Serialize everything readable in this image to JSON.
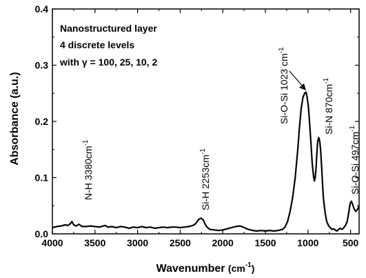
{
  "chart_data": {
    "type": "line",
    "xlabel": "Wavenumber",
    "xlabel_unit_base": "(cm",
    "xlabel_unit_sup": "-1",
    "xlabel_unit_close": ")",
    "ylabel": "Absorbance (a.u.)",
    "xlim": [
      4000,
      400
    ],
    "ylim": [
      0,
      0.4
    ],
    "x_reversed": true,
    "x_ticks": [
      {
        "value": 4000,
        "label": "4000"
      },
      {
        "value": 3500,
        "label": "3500"
      },
      {
        "value": 3000,
        "label": "3000"
      },
      {
        "value": 2500,
        "label": "2500"
      },
      {
        "value": 2000,
        "label": "2000"
      },
      {
        "value": 1500,
        "label": "1500"
      },
      {
        "value": 1000,
        "label": "1000"
      },
      {
        "value": 500,
        "label": "500"
      }
    ],
    "y_ticks": [
      {
        "value": 0.0,
        "label": "0.0"
      },
      {
        "value": 0.1,
        "label": "0.1"
      },
      {
        "value": 0.2,
        "label": "0.2"
      },
      {
        "value": 0.3,
        "label": "0.3"
      },
      {
        "value": 0.4,
        "label": "0.4"
      }
    ],
    "grid": false,
    "annotation_lines": [
      "Nanostructured layer",
      "4 discrete levels",
      "with γ = 100, 25, 10, 2"
    ],
    "peak_labels": [
      {
        "base": "N-H 3380cm",
        "sup": "-1",
        "x": 3380,
        "y": 0.012
      },
      {
        "base": "Si-H 2253cm",
        "sup": "-1",
        "x": 2253,
        "y": 0.028
      },
      {
        "base": "Si-O-Si 1023 cm",
        "sup": "-1",
        "x": 1023,
        "y": 0.252
      },
      {
        "base": "Si-N 870cm",
        "sup": "-1",
        "x": 870,
        "y": 0.171
      },
      {
        "base": "Si-O-Si 497cm",
        "sup": "-1",
        "x": 497,
        "y": 0.058
      }
    ],
    "series": [
      {
        "color": "#000000",
        "x": [
          4000,
          3950,
          3900,
          3850,
          3820,
          3790,
          3770,
          3750,
          3720,
          3690,
          3650,
          3600,
          3550,
          3500,
          3450,
          3400,
          3380,
          3350,
          3300,
          3250,
          3200,
          3150,
          3100,
          3050,
          3000,
          2950,
          2900,
          2850,
          2800,
          2750,
          2700,
          2650,
          2600,
          2550,
          2500,
          2450,
          2400,
          2350,
          2320,
          2300,
          2280,
          2253,
          2230,
          2210,
          2190,
          2170,
          2150,
          2100,
          2050,
          2000,
          1950,
          1900,
          1850,
          1800,
          1760,
          1720,
          1700,
          1650,
          1600,
          1550,
          1500,
          1450,
          1400,
          1350,
          1300,
          1270,
          1240,
          1210,
          1180,
          1150,
          1120,
          1100,
          1080,
          1060,
          1040,
          1023,
          1010,
          995,
          980,
          965,
          950,
          935,
          925,
          915,
          905,
          895,
          885,
          875,
          870,
          860,
          850,
          840,
          830,
          820,
          800,
          780,
          760,
          740,
          720,
          700,
          680,
          660,
          640,
          620,
          600,
          580,
          560,
          540,
          520,
          510,
          500,
          490,
          480,
          460,
          440,
          420,
          400
        ],
        "y": [
          0.011,
          0.013,
          0.014,
          0.016,
          0.015,
          0.018,
          0.022,
          0.016,
          0.014,
          0.017,
          0.013,
          0.013,
          0.014,
          0.013,
          0.012,
          0.014,
          0.015,
          0.012,
          0.013,
          0.011,
          0.013,
          0.012,
          0.01,
          0.012,
          0.011,
          0.013,
          0.011,
          0.012,
          0.01,
          0.011,
          0.012,
          0.011,
          0.012,
          0.012,
          0.011,
          0.012,
          0.013,
          0.015,
          0.018,
          0.022,
          0.026,
          0.028,
          0.025,
          0.018,
          0.013,
          0.01,
          0.008,
          0.007,
          0.006,
          0.007,
          0.009,
          0.011,
          0.013,
          0.014,
          0.012,
          0.009,
          0.008,
          0.006,
          0.005,
          0.006,
          0.005,
          0.006,
          0.005,
          0.006,
          0.008,
          0.012,
          0.022,
          0.04,
          0.065,
          0.1,
          0.15,
          0.19,
          0.222,
          0.242,
          0.25,
          0.252,
          0.243,
          0.225,
          0.195,
          0.16,
          0.125,
          0.102,
          0.094,
          0.1,
          0.118,
          0.145,
          0.165,
          0.171,
          0.17,
          0.163,
          0.145,
          0.12,
          0.092,
          0.065,
          0.038,
          0.022,
          0.015,
          0.011,
          0.008,
          0.009,
          0.007,
          0.005,
          0.008,
          0.01,
          0.008,
          0.011,
          0.015,
          0.022,
          0.04,
          0.05,
          0.056,
          0.058,
          0.054,
          0.045,
          0.04,
          0.043,
          0.05
        ]
      }
    ]
  }
}
